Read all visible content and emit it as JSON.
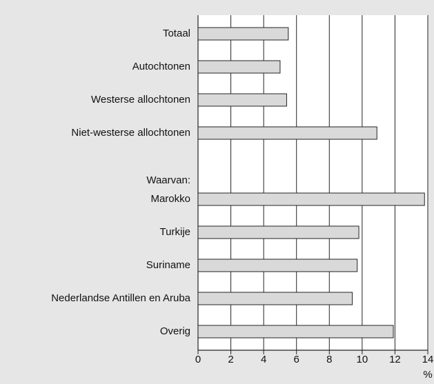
{
  "chart_data": {
    "type": "barh",
    "categories": [
      "Totaal",
      "Autochtonen",
      "Westerse allochtonen",
      "Niet-westerse allochtonen",
      null,
      "Marokko",
      "Turkije",
      "Suriname",
      "Nederlandse Antillen en Aruba",
      "Overig"
    ],
    "values": [
      5.5,
      5.0,
      5.4,
      10.9,
      null,
      13.8,
      9.8,
      9.7,
      9.4,
      11.9
    ],
    "annotation": "Waarvan:",
    "xlabel": "%",
    "color": "#d9d9d9",
    "xlim": [
      0,
      14
    ],
    "xticks": [
      0,
      2,
      4,
      6,
      8,
      10,
      12,
      14
    ],
    "grid": true
  }
}
